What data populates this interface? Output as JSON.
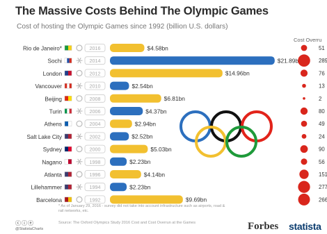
{
  "header": {
    "title": "The Massive Costs Behind The Olympic Games",
    "subtitle": "Cost of hosting the Olympic Games since 1992 (billion U.S. dollars)",
    "overrun_label": "Cost Overru"
  },
  "chart_data": {
    "type": "bar",
    "orientation": "horizontal",
    "xlim": [
      0,
      22
    ],
    "categories": [
      "Rio de Janeiro*",
      "Sochi",
      "London",
      "Vancouver",
      "Beijing",
      "Turin",
      "Athens",
      "Salt Lake City",
      "Sydney",
      "Nagano",
      "Atlanta",
      "Lillehammer",
      "Barcelona"
    ],
    "years": [
      "2016",
      "2014",
      "2012",
      "2010",
      "2008",
      "2006",
      "2004",
      "2002",
      "2000",
      "1998",
      "1996",
      "1994",
      "1992"
    ],
    "season": [
      "summer",
      "winter",
      "summer",
      "winter",
      "summer",
      "winter",
      "summer",
      "winter",
      "summer",
      "winter",
      "summer",
      "winter",
      "summer"
    ],
    "values": [
      4.58,
      21.89,
      14.96,
      2.54,
      6.81,
      4.37,
      2.94,
      2.52,
      5.03,
      2.23,
      4.14,
      2.23,
      9.69
    ],
    "value_labels": [
      "$4.58bn",
      "$21.89bn",
      "$14.96bn",
      "$2.54bn",
      "$6.81bn",
      "$4.37bn",
      "$2.94bn",
      "$2.52bn",
      "$5.03bn",
      "$2.23bn",
      "$4.14bn",
      "$2.23bn",
      "$9.69bn"
    ],
    "cost_overrun_pct": [
      51,
      289,
      76,
      13,
      2,
      80,
      49,
      24,
      90,
      56,
      151,
      277,
      266
    ],
    "cost_overrun_labels": [
      "51",
      "289",
      "76",
      "13",
      "2",
      "80",
      "49",
      "24",
      "90",
      "56",
      "151",
      "277",
      "266"
    ],
    "colors": {
      "summer": "#f2c030",
      "winter": "#2c6fbe",
      "overrun": "#d9261c"
    }
  },
  "footer": {
    "footnote": "* As of January 29, 2016 - survey did not take into account infrastructure such as airports, road & rail networks, etc.",
    "source": "Source: The Oxford Olympics Study 2016 Cost and Cost Overrun at the Games",
    "cc": "ⓒⓘⓔ",
    "handle": "@StatistaCharts",
    "forbes": "Forbes",
    "statista": "statista"
  }
}
